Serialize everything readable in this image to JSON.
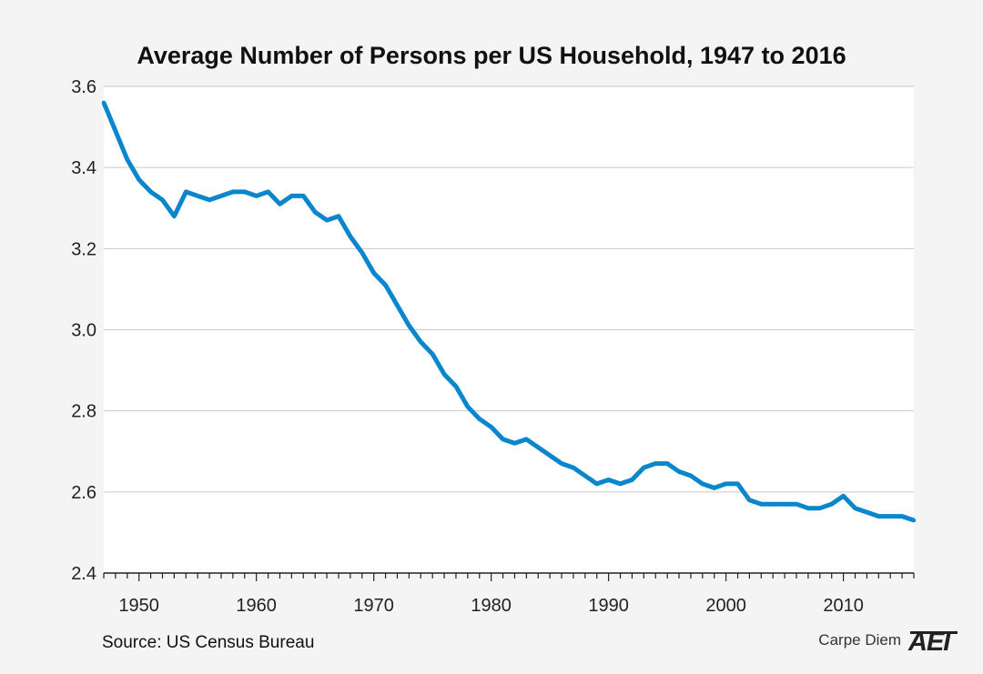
{
  "chart_data": {
    "type": "line",
    "title": "Average Number of Persons per US Household, 1947 to 2016",
    "xlabel": "",
    "ylabel": "",
    "xlim": [
      1947,
      2016
    ],
    "ylim": [
      2.4,
      3.6
    ],
    "yticks": [
      "2.4",
      "2.6",
      "2.8",
      "3.0",
      "3.2",
      "3.4",
      "3.6"
    ],
    "xticks": [
      "1950",
      "1960",
      "1970",
      "1980",
      "1990",
      "2000",
      "2010"
    ],
    "grid": true,
    "line_color": "#0a86cc",
    "series": [
      {
        "x": [
          1947,
          1948,
          1949,
          1950,
          1951,
          1952,
          1953,
          1954,
          1955,
          1956,
          1957,
          1958,
          1959,
          1960,
          1961,
          1962,
          1963,
          1964,
          1965,
          1966,
          1967,
          1968,
          1969,
          1970,
          1971,
          1972,
          1973,
          1974,
          1975,
          1976,
          1977,
          1978,
          1979,
          1980,
          1981,
          1982,
          1983,
          1984,
          1985,
          1986,
          1987,
          1988,
          1989,
          1990,
          1991,
          1992,
          1993,
          1994,
          1995,
          1996,
          1997,
          1998,
          1999,
          2000,
          2001,
          2002,
          2003,
          2004,
          2005,
          2006,
          2007,
          2008,
          2009,
          2010,
          2011,
          2012,
          2013,
          2014,
          2015,
          2016
        ],
        "values": [
          3.56,
          3.49,
          3.42,
          3.37,
          3.34,
          3.32,
          3.28,
          3.34,
          3.33,
          3.32,
          3.33,
          3.34,
          3.34,
          3.33,
          3.34,
          3.31,
          3.33,
          3.33,
          3.29,
          3.27,
          3.28,
          3.23,
          3.19,
          3.14,
          3.11,
          3.06,
          3.01,
          2.97,
          2.94,
          2.89,
          2.86,
          2.81,
          2.78,
          2.76,
          2.73,
          2.72,
          2.73,
          2.71,
          2.69,
          2.67,
          2.66,
          2.64,
          2.62,
          2.63,
          2.62,
          2.63,
          2.66,
          2.67,
          2.67,
          2.65,
          2.64,
          2.62,
          2.61,
          2.62,
          2.62,
          2.58,
          2.57,
          2.57,
          2.57,
          2.57,
          2.56,
          2.56,
          2.57,
          2.59,
          2.56,
          2.55,
          2.54,
          2.54,
          2.54,
          2.53
        ]
      }
    ]
  },
  "footer": {
    "source": "Source: US Census Bureau",
    "brand": "Carpe Diem",
    "logo": "AEI"
  },
  "icons": {
    "logo": "aei-logo-icon"
  }
}
